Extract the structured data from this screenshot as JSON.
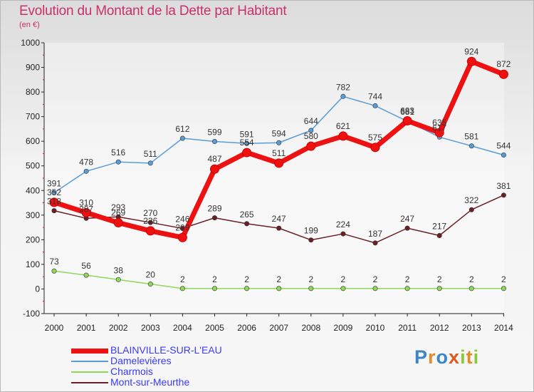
{
  "title": "Evolution du Montant de la Dette par Habitant",
  "subtitle": "(en €)",
  "logo": {
    "letters": [
      "P",
      "r",
      "o",
      "x",
      "i",
      "t",
      "i"
    ],
    "colors": [
      "#3a87c8",
      "#e08a2a",
      "#3a87c8",
      "#e05a1a",
      "#8cc63e",
      "#e08a2a",
      "#8cc63e"
    ]
  },
  "chart_data": {
    "type": "line",
    "title": "Evolution du Montant de la Dette par Habitant",
    "subtitle": "(en €)",
    "xlabel": "",
    "ylabel": "",
    "ylim": [
      -100,
      1000
    ],
    "yticks": [
      -100,
      0,
      100,
      200,
      300,
      400,
      500,
      600,
      700,
      800,
      900,
      1000
    ],
    "categories": [
      "2000",
      "2001",
      "2002",
      "2003",
      "2004",
      "2005",
      "2006",
      "2007",
      "2008",
      "2009",
      "2010",
      "2011",
      "2012",
      "2013",
      "2014"
    ],
    "grid": false,
    "legend_position": "bottom-left",
    "series": [
      {
        "name": "Mont-sur-Meurthe",
        "color": "#6b1f24",
        "values": [
          318,
          287,
          293,
          270,
          246,
          289,
          265,
          247,
          199,
          224,
          187,
          247,
          217,
          322,
          381
        ],
        "labels": [
          "318",
          "287",
          "293",
          "270",
          "246",
          "289",
          "265",
          "247",
          "199",
          "224",
          "187",
          "247",
          "217",
          "322",
          "381"
        ]
      },
      {
        "name": "Charmois",
        "color": "#8fd85a",
        "values": [
          73,
          56,
          38,
          20,
          2,
          2,
          2,
          2,
          2,
          2,
          2,
          2,
          2,
          2,
          2
        ],
        "labels": [
          "73",
          "56",
          "38",
          "20",
          "2",
          "2",
          "2",
          "2",
          "2",
          "2",
          "2",
          "2",
          "2",
          "2",
          "2"
        ]
      },
      {
        "name": "Damelevières",
        "color": "#5a9cd6",
        "values": [
          391,
          478,
          516,
          511,
          612,
          599,
          591,
          594,
          644,
          782,
          744,
          681,
          617,
          581,
          544
        ],
        "labels": [
          "391",
          "478",
          "516",
          "511",
          "612",
          "599",
          "591",
          "594",
          "644",
          "782",
          "744",
          "681",
          "617",
          "581",
          "544"
        ]
      },
      {
        "name": "BLAINVILLE-SUR-L'EAU",
        "color": "#ee1111",
        "values": [
          352,
          310,
          269,
          236,
          209,
          487,
          554,
          511,
          580,
          621,
          575,
          683,
          635,
          924,
          872
        ],
        "labels": [
          "352",
          "310",
          "269",
          "236",
          "209",
          "487",
          "554",
          "511",
          "580",
          "621",
          "575",
          "683",
          "635",
          "924",
          "872"
        ]
      }
    ]
  },
  "legend": [
    {
      "name": "BLAINVILLE-SUR-L'EAU",
      "color": "#ee1111",
      "thick": true
    },
    {
      "name": "Damelevières",
      "color": "#5a9cd6",
      "thick": false
    },
    {
      "name": "Charmois",
      "color": "#8fd85a",
      "thick": false
    },
    {
      "name": "Mont-sur-Meurthe",
      "color": "#6b1f24",
      "thick": false
    }
  ]
}
